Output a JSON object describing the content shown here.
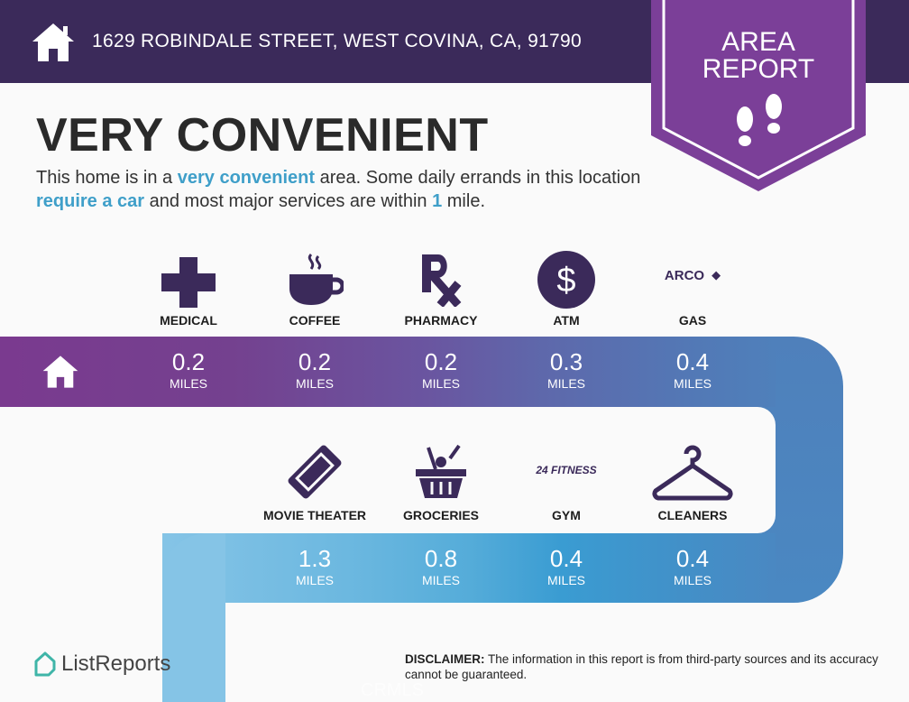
{
  "header": {
    "address": "1629 ROBINDALE STREET, WEST COVINA, CA, 91790",
    "badge_line1": "AREA",
    "badge_line2": "REPORT"
  },
  "headline": "VERY CONVENIENT",
  "description": {
    "p1": "This home is in a ",
    "h1": "very convenient",
    "p2": " area. Some daily errands in this location ",
    "h2": "require a car",
    "p3": " and most major services are within ",
    "h3": "1",
    "p4": " mile."
  },
  "row1": [
    {
      "label": "MEDICAL",
      "value": "0.2",
      "unit": "MILES",
      "icon": "medical-cross-icon"
    },
    {
      "label": "COFFEE",
      "value": "0.2",
      "unit": "MILES",
      "icon": "coffee-cup-icon"
    },
    {
      "label": "PHARMACY",
      "value": "0.2",
      "unit": "MILES",
      "icon": "rx-icon"
    },
    {
      "label": "ATM",
      "value": "0.3",
      "unit": "MILES",
      "icon": "dollar-icon"
    },
    {
      "label": "GAS",
      "value": "0.4",
      "unit": "MILES",
      "icon": "arco-logo",
      "brand": "ARCO"
    }
  ],
  "row2": [
    {
      "label": "MOVIE THEATER",
      "value": "1.3",
      "unit": "MILES",
      "icon": "ticket-icon"
    },
    {
      "label": "GROCERIES",
      "value": "0.8",
      "unit": "MILES",
      "icon": "basket-icon"
    },
    {
      "label": "GYM",
      "value": "0.4",
      "unit": "MILES",
      "icon": "24-fitness-logo",
      "brand": "24 FITNESS"
    },
    {
      "label": "CLEANERS",
      "value": "0.4",
      "unit": "MILES",
      "icon": "hanger-icon"
    }
  ],
  "footer": {
    "logo": "ListReports",
    "disclaimer_label": "DISCLAIMER:",
    "disclaimer": " The information in this report is from third-party sources and its accuracy cannot be guaranteed.",
    "watermark": "CRMLS"
  },
  "colors": {
    "header": "#3b2a5a",
    "badge": "#7b3f98",
    "accent": "#3f9fc9"
  }
}
